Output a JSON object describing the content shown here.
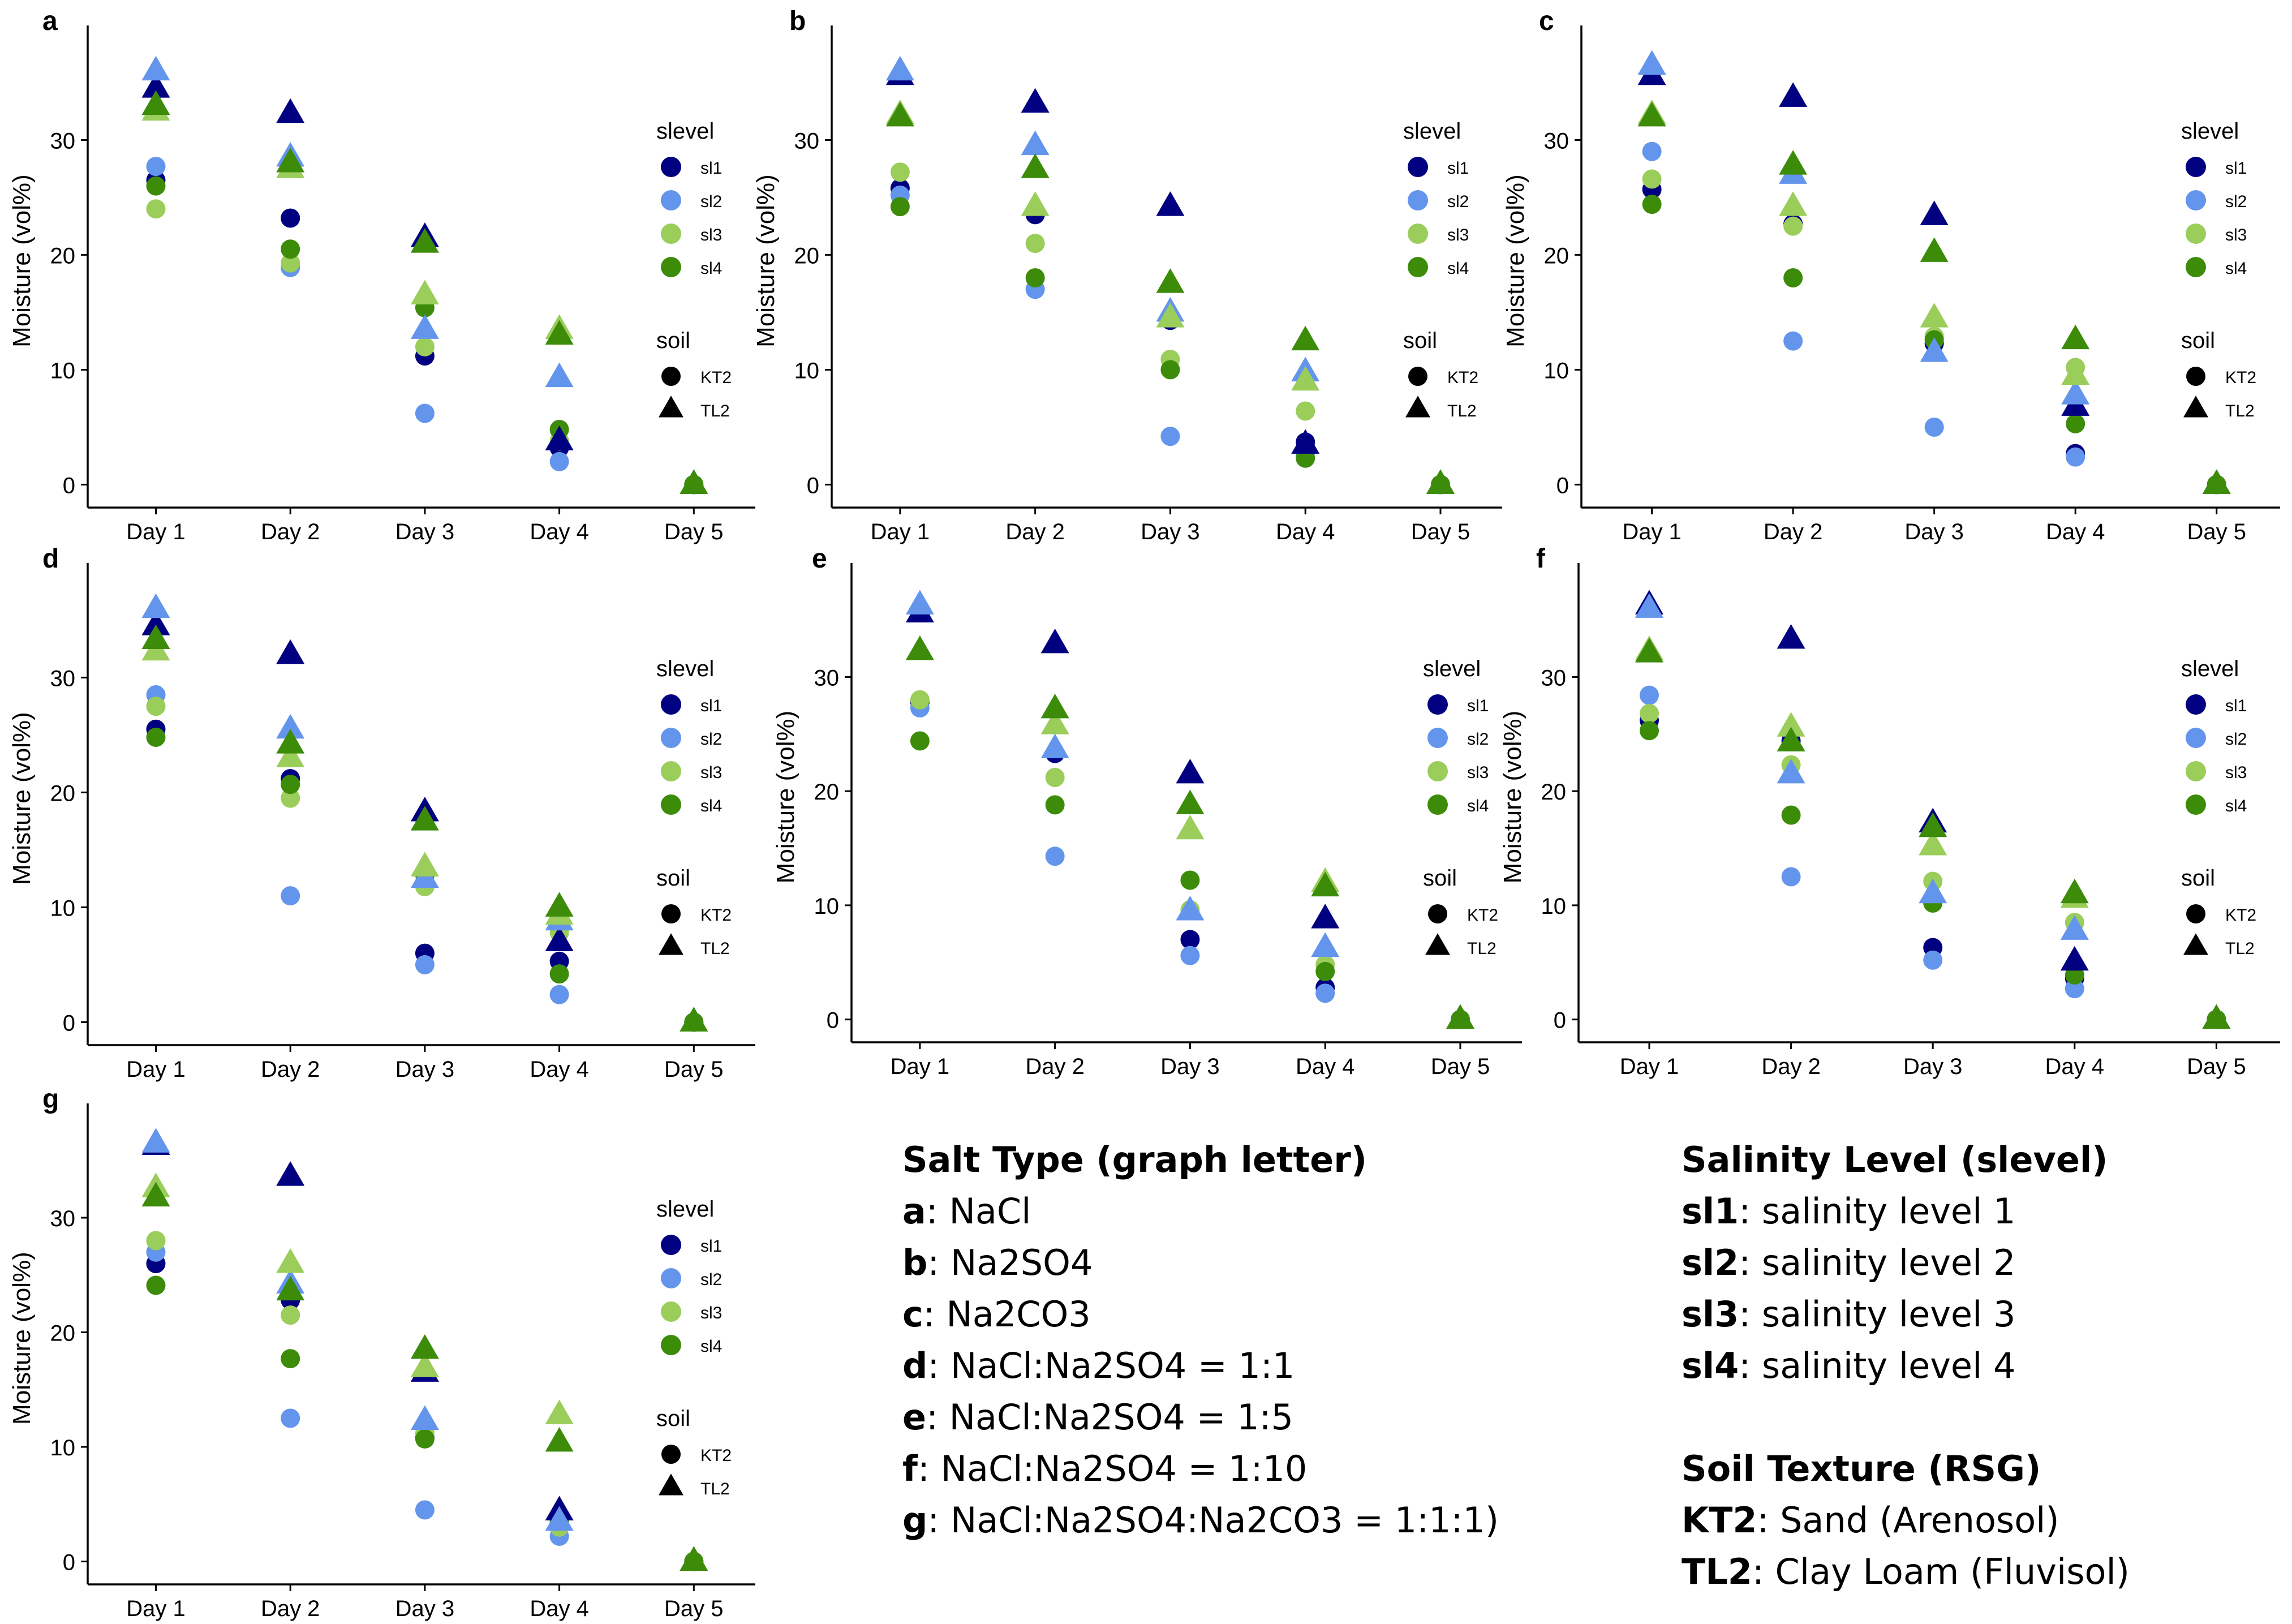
{
  "colors": {
    "sl1": "#000080",
    "sl2": "#6495ED",
    "sl3": "#9ACD5A",
    "sl4": "#3C8C0A"
  },
  "chart_data": [
    {
      "type": "scatter",
      "panel": "a",
      "xlabel": "",
      "ylabel": "Moisture (vol%)",
      "categories": [
        "Day 1",
        "Day 2",
        "Day 3",
        "Day 4",
        "Day 5"
      ],
      "ylim": [
        -2,
        38
      ],
      "yticks": [
        0,
        10,
        20,
        30
      ],
      "series": [
        {
          "name": "sl1",
          "soil": "KT2",
          "values": [
            26.5,
            23.2,
            11.2,
            3.2,
            0
          ]
        },
        {
          "name": "sl2",
          "soil": "KT2",
          "values": [
            27.7,
            18.9,
            6.2,
            2.0,
            0
          ]
        },
        {
          "name": "sl3",
          "soil": "KT2",
          "values": [
            24.0,
            19.3,
            12.0,
            3.8,
            0
          ]
        },
        {
          "name": "sl4",
          "soil": "KT2",
          "values": [
            26.0,
            20.5,
            15.4,
            4.8,
            0
          ]
        },
        {
          "name": "sl1",
          "soil": "TL2",
          "values": [
            34.5,
            32.3,
            21.5,
            3.8,
            0
          ]
        },
        {
          "name": "sl2",
          "soil": "TL2",
          "values": [
            36.0,
            28.5,
            13.5,
            9.3,
            0
          ]
        },
        {
          "name": "sl3",
          "soil": "TL2",
          "values": [
            32.5,
            27.5,
            16.5,
            13.5,
            0
          ]
        },
        {
          "name": "sl4",
          "soil": "TL2",
          "values": [
            33.0,
            28.0,
            21.0,
            13.0,
            0
          ]
        }
      ]
    },
    {
      "type": "scatter",
      "panel": "b",
      "xlabel": "",
      "ylabel": "Moisture (vol%)",
      "categories": [
        "Day 1",
        "Day 2",
        "Day 3",
        "Day 4",
        "Day 5"
      ],
      "ylim": [
        -2,
        38
      ],
      "yticks": [
        0,
        10,
        20,
        30
      ],
      "series": [
        {
          "name": "sl1",
          "soil": "KT2",
          "values": [
            25.8,
            23.5,
            14.3,
            3.7,
            0
          ]
        },
        {
          "name": "sl2",
          "soil": "KT2",
          "values": [
            25.2,
            17.0,
            4.2,
            2.8,
            0
          ]
        },
        {
          "name": "sl3",
          "soil": "KT2",
          "values": [
            27.2,
            21.0,
            10.9,
            6.4,
            0
          ]
        },
        {
          "name": "sl4",
          "soil": "KT2",
          "values": [
            24.2,
            18.0,
            10.0,
            2.3,
            0
          ]
        },
        {
          "name": "sl1",
          "soil": "TL2",
          "values": [
            35.6,
            33.2,
            24.2,
            3.5,
            0
          ]
        },
        {
          "name": "sl2",
          "soil": "TL2",
          "values": [
            36.0,
            29.5,
            15.0,
            9.8,
            0
          ]
        },
        {
          "name": "sl3",
          "soil": "TL2",
          "values": [
            32.2,
            24.2,
            14.5,
            9.0,
            0
          ]
        },
        {
          "name": "sl4",
          "soil": "TL2",
          "values": [
            32.0,
            27.5,
            17.5,
            12.5,
            0
          ]
        }
      ]
    },
    {
      "type": "scatter",
      "panel": "c",
      "xlabel": "",
      "ylabel": "Moisture (vol%)",
      "categories": [
        "Day 1",
        "Day 2",
        "Day 3",
        "Day 4",
        "Day 5"
      ],
      "ylim": [
        -2,
        38
      ],
      "yticks": [
        0,
        10,
        20,
        30
      ],
      "series": [
        {
          "name": "sl1",
          "soil": "KT2",
          "values": [
            25.7,
            22.7,
            12.3,
            2.7,
            0
          ]
        },
        {
          "name": "sl2",
          "soil": "KT2",
          "values": [
            29.0,
            12.5,
            5.0,
            2.4,
            0
          ]
        },
        {
          "name": "sl3",
          "soil": "KT2",
          "values": [
            26.6,
            22.5,
            12.9,
            10.2,
            0
          ]
        },
        {
          "name": "sl4",
          "soil": "KT2",
          "values": [
            24.4,
            18.0,
            12.6,
            5.3,
            0
          ]
        },
        {
          "name": "sl1",
          "soil": "TL2",
          "values": [
            35.6,
            33.7,
            23.4,
            6.8,
            0
          ]
        },
        {
          "name": "sl2",
          "soil": "TL2",
          "values": [
            36.5,
            27.0,
            11.5,
            7.8,
            0
          ]
        },
        {
          "name": "sl3",
          "soil": "TL2",
          "values": [
            32.2,
            24.2,
            14.5,
            9.5,
            0
          ]
        },
        {
          "name": "sl4",
          "soil": "TL2",
          "values": [
            32.0,
            27.8,
            20.2,
            12.6,
            0
          ]
        }
      ]
    },
    {
      "type": "scatter",
      "panel": "d",
      "xlabel": "",
      "ylabel": "Moisture (vol%)",
      "categories": [
        "Day 1",
        "Day 2",
        "Day 3",
        "Day 4",
        "Day 5"
      ],
      "ylim": [
        -2,
        38
      ],
      "yticks": [
        0,
        10,
        20,
        30
      ],
      "series": [
        {
          "name": "sl1",
          "soil": "KT2",
          "values": [
            25.5,
            21.2,
            6.0,
            5.3,
            0
          ]
        },
        {
          "name": "sl2",
          "soil": "KT2",
          "values": [
            28.5,
            11.0,
            5.0,
            2.4,
            0
          ]
        },
        {
          "name": "sl3",
          "soil": "KT2",
          "values": [
            27.5,
            19.5,
            11.8,
            7.8,
            0
          ]
        },
        {
          "name": "sl4",
          "soil": "KT2",
          "values": [
            24.8,
            20.7,
            12.8,
            4.2,
            0
          ]
        },
        {
          "name": "sl1",
          "soil": "TL2",
          "values": [
            34.5,
            32.0,
            18.3,
            7.0,
            0
          ]
        },
        {
          "name": "sl2",
          "soil": "TL2",
          "values": [
            36.0,
            25.5,
            12.5,
            8.8,
            0
          ]
        },
        {
          "name": "sl3",
          "soil": "TL2",
          "values": [
            32.3,
            23.0,
            13.5,
            9.3,
            0
          ]
        },
        {
          "name": "sl4",
          "soil": "TL2",
          "values": [
            33.3,
            24.2,
            17.5,
            10.0,
            0
          ]
        }
      ]
    },
    {
      "type": "scatter",
      "panel": "e",
      "xlabel": "",
      "ylabel": "Moisture (vol%)",
      "categories": [
        "Day 1",
        "Day 2",
        "Day 3",
        "Day 4",
        "Day 5"
      ],
      "ylim": [
        -2,
        38
      ],
      "yticks": [
        0,
        10,
        20,
        30
      ],
      "series": [
        {
          "name": "sl1",
          "soil": "KT2",
          "values": [
            27.8,
            23.3,
            7.0,
            2.8,
            0
          ]
        },
        {
          "name": "sl2",
          "soil": "KT2",
          "values": [
            27.3,
            14.3,
            5.6,
            2.3,
            0
          ]
        },
        {
          "name": "sl3",
          "soil": "KT2",
          "values": [
            28.0,
            21.2,
            9.6,
            4.8,
            0
          ]
        },
        {
          "name": "sl4",
          "soil": "KT2",
          "values": [
            24.4,
            18.8,
            12.2,
            4.2,
            0
          ]
        },
        {
          "name": "sl1",
          "soil": "TL2",
          "values": [
            35.6,
            32.9,
            21.5,
            8.8,
            0
          ]
        },
        {
          "name": "sl2",
          "soil": "TL2",
          "values": [
            36.3,
            23.7,
            9.5,
            6.3,
            0
          ]
        },
        {
          "name": "sl3",
          "soil": "TL2",
          "values": [
            32.3,
            25.8,
            16.6,
            12.0,
            0
          ]
        },
        {
          "name": "sl4",
          "soil": "TL2",
          "values": [
            32.3,
            27.2,
            18.8,
            11.6,
            0
          ]
        }
      ]
    },
    {
      "type": "scatter",
      "panel": "f",
      "xlabel": "",
      "ylabel": "Moisture (vol%)",
      "categories": [
        "Day 1",
        "Day 2",
        "Day 3",
        "Day 4",
        "Day 5"
      ],
      "ylim": [
        -2,
        38
      ],
      "yticks": [
        0,
        10,
        20,
        30
      ],
      "series": [
        {
          "name": "sl1",
          "soil": "KT2",
          "values": [
            26.2,
            24.4,
            6.3,
            3.6,
            0
          ]
        },
        {
          "name": "sl2",
          "soil": "KT2",
          "values": [
            28.4,
            12.5,
            5.2,
            2.7,
            0
          ]
        },
        {
          "name": "sl3",
          "soil": "KT2",
          "values": [
            26.8,
            22.3,
            12.1,
            8.5,
            0
          ]
        },
        {
          "name": "sl4",
          "soil": "KT2",
          "values": [
            25.3,
            17.9,
            10.2,
            3.9,
            0
          ]
        },
        {
          "name": "sl1",
          "soil": "TL2",
          "values": [
            36.3,
            33.3,
            17.2,
            5.1,
            0
          ]
        },
        {
          "name": "sl2",
          "soil": "TL2",
          "values": [
            36.0,
            21.5,
            11.0,
            7.8,
            0
          ]
        },
        {
          "name": "sl3",
          "soil": "TL2",
          "values": [
            32.3,
            25.6,
            15.2,
            10.6,
            0
          ]
        },
        {
          "name": "sl4",
          "soil": "TL2",
          "values": [
            32.1,
            24.3,
            16.8,
            11.0,
            0
          ]
        }
      ]
    },
    {
      "type": "scatter",
      "panel": "g",
      "xlabel": "",
      "ylabel": "Moisture (vol%)",
      "categories": [
        "Day 1",
        "Day 2",
        "Day 3",
        "Day 4",
        "Day 5"
      ],
      "ylim": [
        -2,
        38
      ],
      "yticks": [
        0,
        10,
        20,
        30
      ],
      "series": [
        {
          "name": "sl1",
          "soil": "KT2",
          "values": [
            26.0,
            22.8,
            10.8,
            3.3,
            0
          ]
        },
        {
          "name": "sl2",
          "soil": "KT2",
          "values": [
            27.0,
            12.5,
            4.5,
            2.2,
            0
          ]
        },
        {
          "name": "sl3",
          "soil": "KT2",
          "values": [
            28.0,
            21.5,
            11.2,
            3.0,
            0
          ]
        },
        {
          "name": "sl4",
          "soil": "KT2",
          "values": [
            24.1,
            17.7,
            10.7,
            3.5,
            0
          ]
        },
        {
          "name": "sl1",
          "soil": "TL2",
          "values": [
            36.3,
            33.6,
            16.5,
            4.4,
            0
          ]
        },
        {
          "name": "sl2",
          "soil": "TL2",
          "values": [
            36.5,
            24.2,
            12.3,
            3.5,
            0
          ]
        },
        {
          "name": "sl3",
          "soil": "TL2",
          "values": [
            32.6,
            26.0,
            16.9,
            12.8,
            0
          ]
        },
        {
          "name": "sl4",
          "soil": "TL2",
          "values": [
            31.8,
            23.6,
            18.5,
            10.4,
            0
          ]
        }
      ]
    }
  ],
  "inset_legend": {
    "slevel_title": "slevel",
    "slevel_labels": [
      "sl1",
      "sl2",
      "sl3",
      "sl4"
    ],
    "soil_title": "soil",
    "soil_labels": [
      "KT2",
      "TL2"
    ]
  },
  "salt_legend": {
    "title": "Salt Type (graph letter)",
    "items": [
      {
        "key": "a",
        "text": ": NaCl"
      },
      {
        "key": "b",
        "text": ": Na2SO4"
      },
      {
        "key": "c",
        "text": ": Na2CO3"
      },
      {
        "key": "d",
        "text": ": NaCl:Na2SO4 = 1:1"
      },
      {
        "key": "e",
        "text": ": NaCl:Na2SO4 = 1:5"
      },
      {
        "key": "f",
        "text": ": NaCl:Na2SO4 = 1:10"
      },
      {
        "key": "g",
        "text": ": NaCl:Na2SO4:Na2CO3 = 1:1:1)"
      }
    ]
  },
  "slevel_legend": {
    "title": "Salinity Level (slevel)",
    "items": [
      {
        "key": "sl1",
        "text": ": salinity level 1"
      },
      {
        "key": "sl2",
        "text": ": salinity level 2"
      },
      {
        "key": "sl3",
        "text": ": salinity level 3"
      },
      {
        "key": "sl4",
        "text": ": salinity level 4"
      }
    ]
  },
  "soil_legend": {
    "title": "Soil Texture (RSG)",
    "items": [
      {
        "key": "KT2",
        "text": ": Sand (Arenosol)"
      },
      {
        "key": "TL2",
        "text": ": Clay Loam (Fluvisol)"
      }
    ]
  }
}
